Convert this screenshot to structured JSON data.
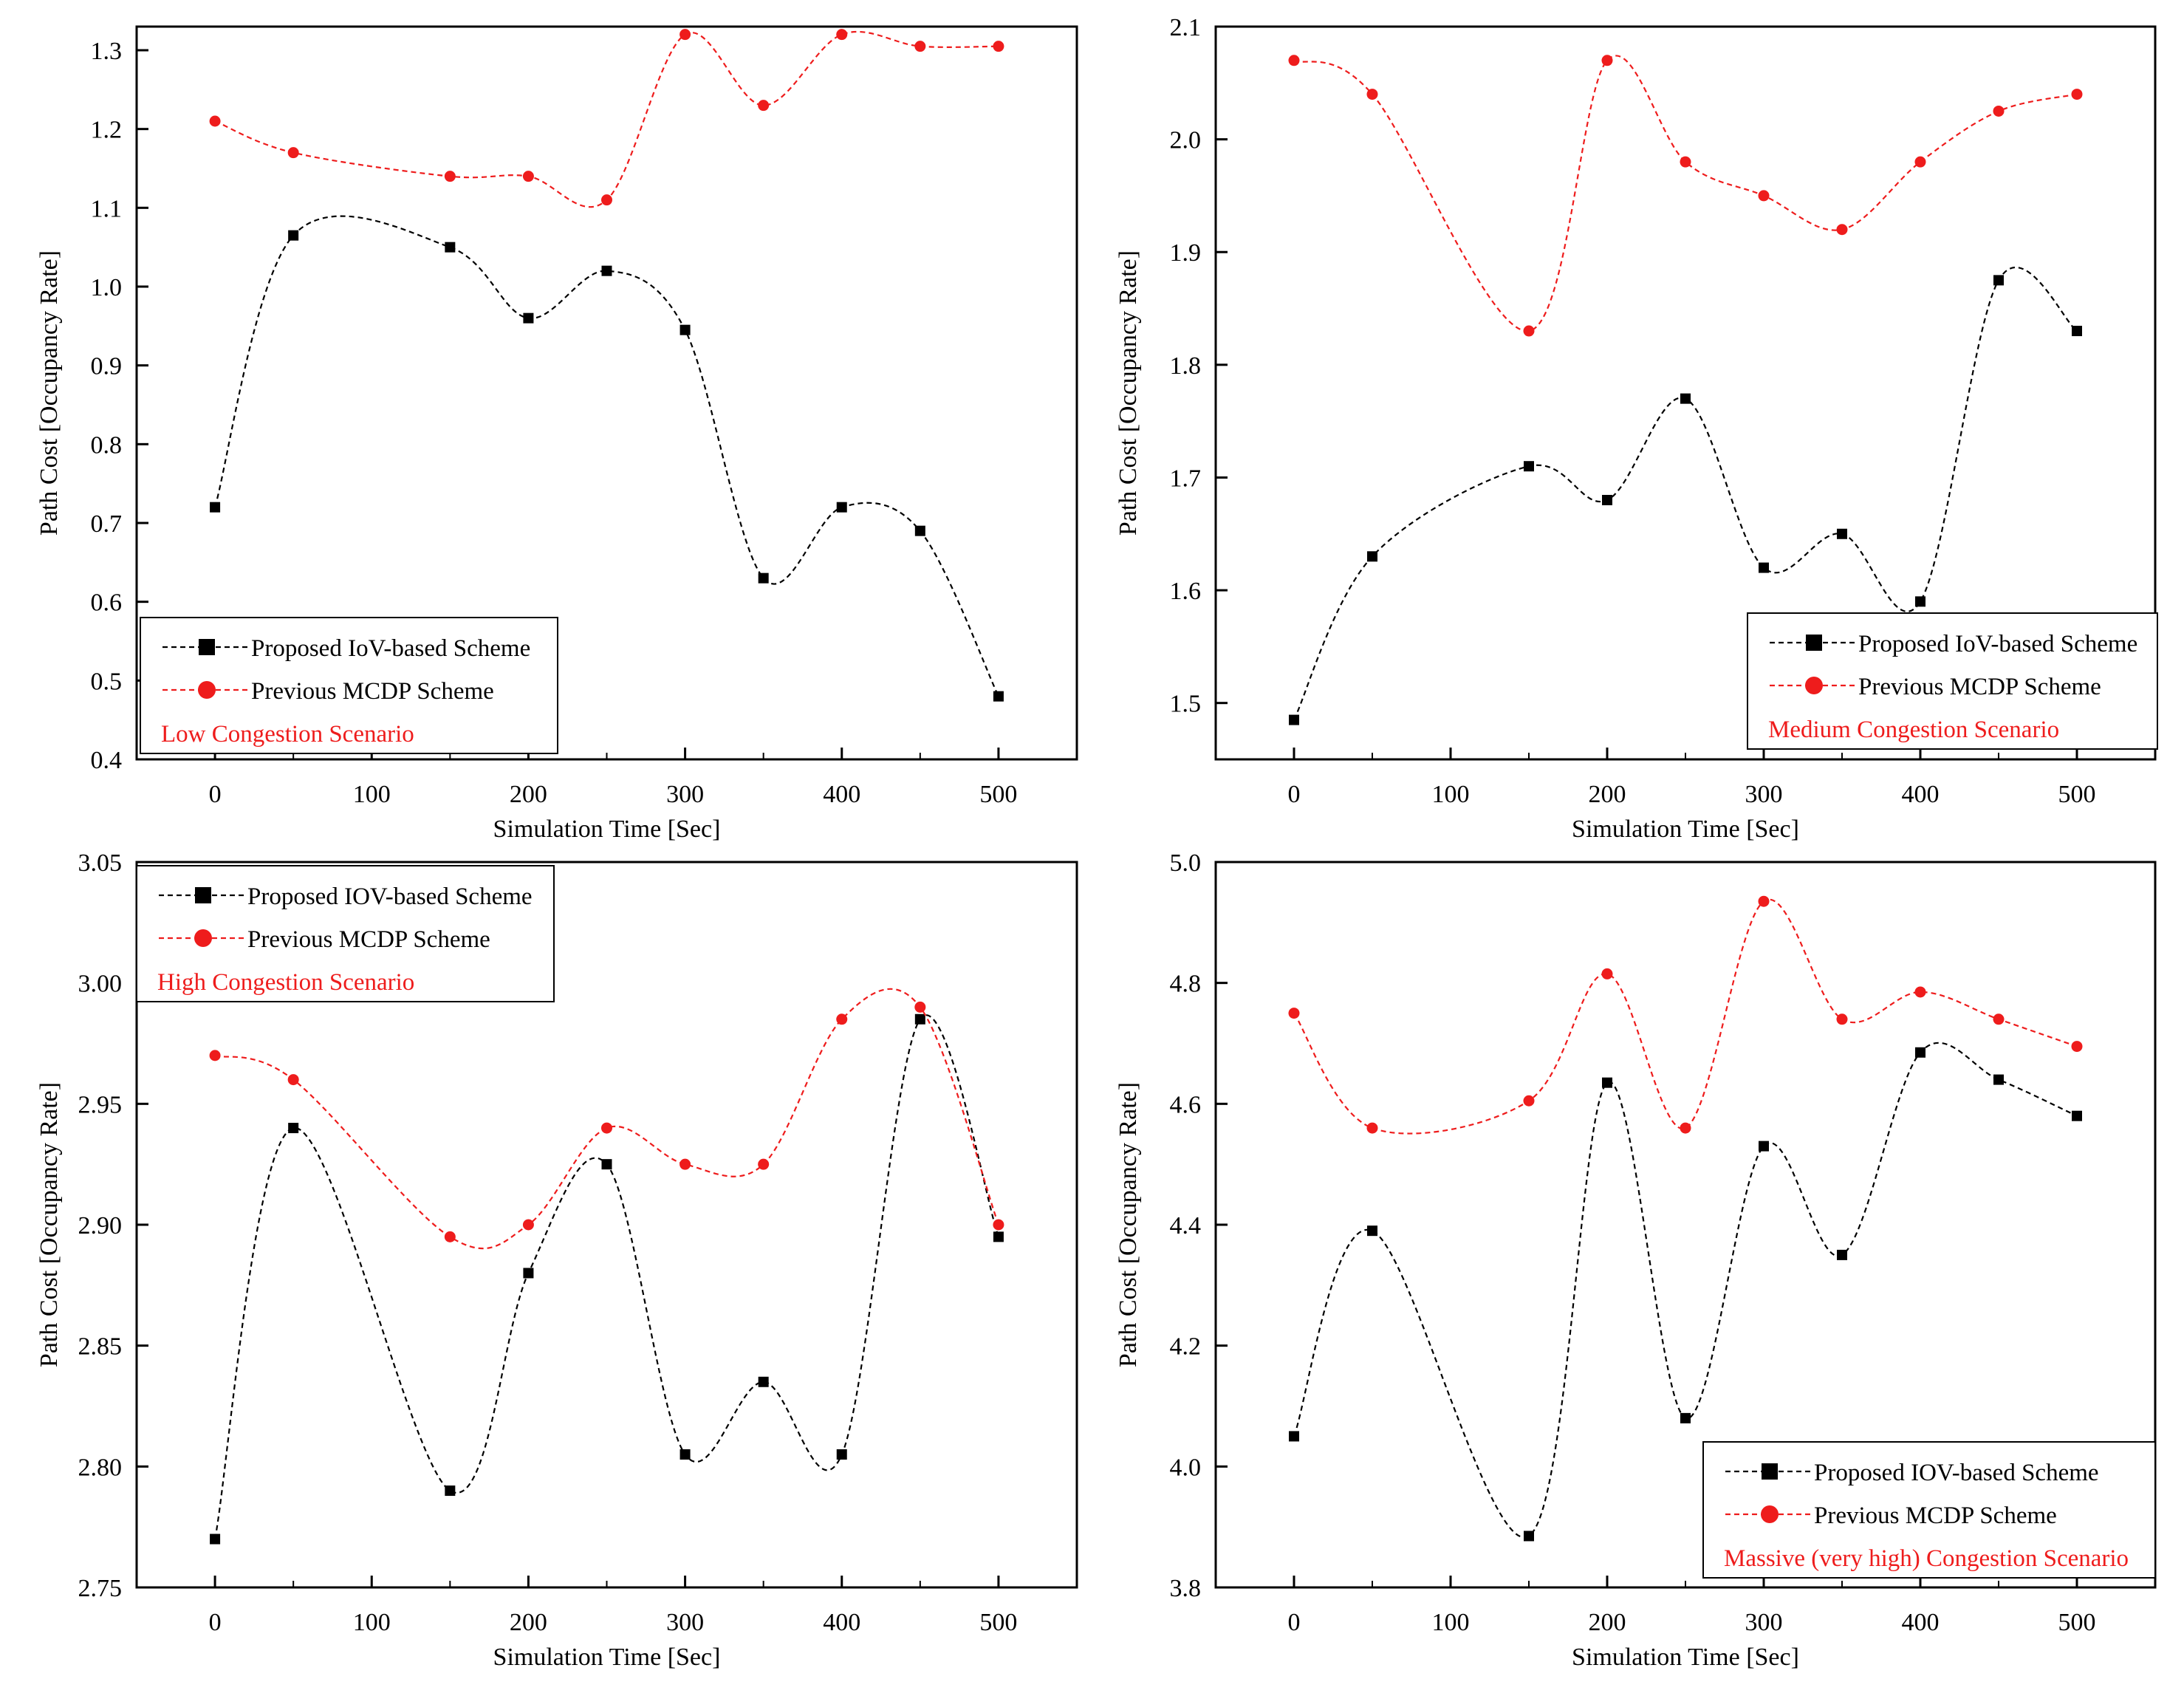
{
  "colors": {
    "proposed": "#000000",
    "previous": "#ee1c1c",
    "scenario": "#ee1c1c",
    "axis": "#000000",
    "background": "#ffffff"
  },
  "chart_data": [
    {
      "type": "line",
      "title": "",
      "scenario": "Low Congestion Scenario",
      "xlabel": "Simulation Time [Sec]",
      "ylabel": "Path Cost [Occupancy Rate]",
      "xlim": [
        -50,
        550
      ],
      "ylim": [
        0.4,
        1.33
      ],
      "xticks": [
        0,
        100,
        200,
        300,
        400,
        500
      ],
      "xtick_labels": [
        "0",
        "100",
        "200",
        "300",
        "400",
        "500"
      ],
      "yticks": [
        0.4,
        0.5,
        0.6,
        0.7,
        0.8,
        0.9,
        1.0,
        1.1,
        1.2,
        1.3
      ],
      "ytick_labels": [
        "0.4",
        "0.5",
        "0.6",
        "0.7",
        "0.8",
        "0.9",
        "1.0",
        "1.1",
        "1.2",
        "1.3"
      ],
      "legend_position": "bottom-left",
      "x": [
        0,
        50,
        150,
        200,
        250,
        300,
        350,
        400,
        450,
        500
      ],
      "series": [
        {
          "name": "Proposed IoV-based Scheme",
          "marker": "square",
          "values": [
            0.72,
            1.065,
            1.05,
            0.96,
            1.02,
            0.945,
            0.63,
            0.72,
            0.69,
            0.48
          ]
        },
        {
          "name": "Previous MCDP Scheme",
          "marker": "circle",
          "values": [
            1.21,
            1.17,
            1.14,
            1.14,
            1.11,
            1.32,
            1.23,
            1.32,
            1.305,
            1.305
          ]
        }
      ]
    },
    {
      "type": "line",
      "title": "",
      "scenario": "Medium Congestion Scenario",
      "xlabel": "Simulation Time [Sec]",
      "ylabel": "Path Cost [Occupancy Rate]",
      "xlim": [
        -50,
        550
      ],
      "ylim": [
        1.45,
        2.1
      ],
      "xticks": [
        0,
        100,
        200,
        300,
        400,
        500
      ],
      "xtick_labels": [
        "0",
        "100",
        "200",
        "300",
        "400",
        "500"
      ],
      "yticks": [
        1.5,
        1.6,
        1.7,
        1.8,
        1.9,
        2.0,
        2.1
      ],
      "ytick_labels": [
        "1.5",
        "1.6",
        "1.7",
        "1.8",
        "1.9",
        "2.0",
        "2.1"
      ],
      "legend_position": "bottom-right",
      "x": [
        0,
        50,
        150,
        200,
        250,
        300,
        350,
        400,
        450,
        500
      ],
      "series": [
        {
          "name": "Proposed IoV-based Scheme",
          "marker": "square",
          "values": [
            1.485,
            1.63,
            1.71,
            1.68,
            1.77,
            1.62,
            1.65,
            1.59,
            1.875,
            1.83
          ]
        },
        {
          "name": "Previous MCDP Scheme",
          "marker": "circle",
          "values": [
            2.07,
            2.04,
            1.83,
            2.07,
            1.98,
            1.95,
            1.92,
            1.98,
            2.025,
            2.04
          ]
        }
      ]
    },
    {
      "type": "line",
      "title": "",
      "scenario": "High Congestion Scenario",
      "xlabel": "Simulation Time [Sec]",
      "ylabel": "Path Cost [Occupancy Rate]",
      "xlim": [
        -50,
        550
      ],
      "ylim": [
        2.75,
        3.05
      ],
      "xticks": [
        0,
        100,
        200,
        300,
        400,
        500
      ],
      "xtick_labels": [
        "0",
        "100",
        "200",
        "300",
        "400",
        "500"
      ],
      "yticks": [
        2.75,
        2.8,
        2.85,
        2.9,
        2.95,
        3.0,
        3.05
      ],
      "ytick_labels": [
        "2.75",
        "2.80",
        "2.85",
        "2.90",
        "2.95",
        "3.00",
        "3.05"
      ],
      "legend_position": "top-left",
      "x": [
        0,
        50,
        150,
        200,
        250,
        300,
        350,
        400,
        450,
        500
      ],
      "series": [
        {
          "name": "Proposed IOV-based Scheme",
          "marker": "square",
          "values": [
            2.77,
            2.94,
            2.79,
            2.88,
            2.925,
            2.805,
            2.835,
            2.805,
            2.985,
            2.895
          ]
        },
        {
          "name": "Previous MCDP Scheme",
          "marker": "circle",
          "values": [
            2.97,
            2.96,
            2.895,
            2.9,
            2.94,
            2.925,
            2.925,
            2.985,
            2.99,
            2.9
          ]
        }
      ]
    },
    {
      "type": "line",
      "title": "",
      "scenario": "Massive (very high) Congestion Scenario",
      "xlabel": "Simulation Time [Sec]",
      "ylabel": "Path Cost [Occupancy Rate]",
      "xlim": [
        -50,
        550
      ],
      "ylim": [
        3.8,
        5.0
      ],
      "xticks": [
        0,
        100,
        200,
        300,
        400,
        500
      ],
      "xtick_labels": [
        "0",
        "100",
        "200",
        "300",
        "400",
        "500"
      ],
      "yticks": [
        3.8,
        4.0,
        4.2,
        4.4,
        4.6,
        4.8,
        5.0
      ],
      "ytick_labels": [
        "3.8",
        "4.0",
        "4.2",
        "4.4",
        "4.6",
        "4.8",
        "5.0"
      ],
      "legend_position": "bottom-right",
      "x": [
        0,
        50,
        150,
        200,
        250,
        300,
        350,
        400,
        450,
        500
      ],
      "series": [
        {
          "name": "Proposed IOV-based Scheme",
          "marker": "square",
          "values": [
            4.05,
            4.39,
            3.885,
            4.635,
            4.08,
            4.53,
            4.35,
            4.685,
            4.64,
            4.58
          ]
        },
        {
          "name": "Previous MCDP Scheme",
          "marker": "circle",
          "values": [
            4.75,
            4.56,
            4.605,
            4.815,
            4.56,
            4.935,
            4.74,
            4.785,
            4.74,
            4.695
          ]
        }
      ]
    }
  ]
}
